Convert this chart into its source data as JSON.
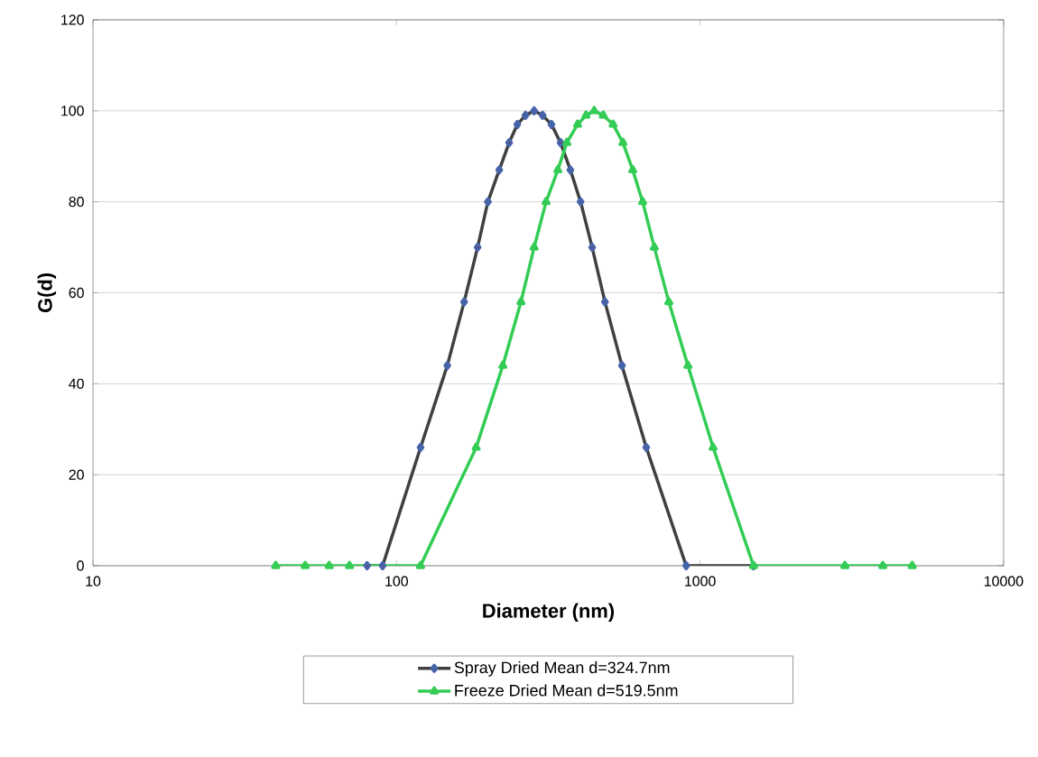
{
  "chart_data": {
    "type": "line",
    "xlabel": "Diameter (nm)",
    "ylabel": "G(d)",
    "log": "x",
    "grid": "y",
    "legend": "bottom",
    "xlim": [
      10,
      10000
    ],
    "xticks": [
      10,
      100,
      1000,
      10000
    ],
    "ylim": [
      0,
      120
    ],
    "yticks": [
      0,
      20,
      40,
      60,
      80,
      100,
      120
    ],
    "series": [
      {
        "name": "Spray Dried Mean d=324.7nm",
        "color": "#404040",
        "marker": "diamond",
        "x": [
          80,
          90,
          120,
          147,
          167,
          185,
          200,
          218,
          235,
          250,
          266,
          284,
          303,
          324,
          347,
          374,
          404,
          441,
          486,
          553,
          665,
          900,
          1500
        ],
        "values": [
          0,
          0,
          26,
          44,
          58,
          70,
          80,
          87,
          93,
          97,
          99,
          100,
          99,
          97,
          93,
          87,
          80,
          70,
          58,
          44,
          26,
          0,
          0
        ]
      },
      {
        "name": "Freeze Dried Mean d=519.5nm",
        "color": "#33cc55",
        "marker": "triangle",
        "x": [
          40,
          50,
          60,
          70,
          120,
          183,
          224,
          257,
          284,
          311,
          340,
          364,
          395,
          421,
          448,
          480,
          517,
          557,
          600,
          647,
          707,
          789,
          912,
          1104,
          1500,
          3000,
          4000,
          5000
        ],
        "values": [
          0,
          0,
          0,
          0,
          0,
          26,
          44,
          58,
          70,
          80,
          87,
          93,
          97,
          99,
          100,
          99,
          97,
          93,
          87,
          80,
          70,
          58,
          44,
          26,
          0,
          0,
          0,
          0
        ]
      }
    ]
  }
}
